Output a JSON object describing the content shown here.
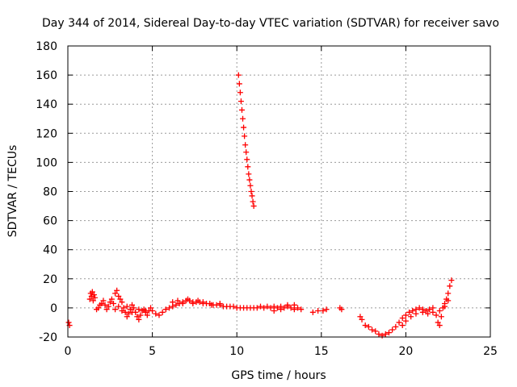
{
  "chart_data": {
    "type": "scatter",
    "title": "Day 344 of 2014, Sidereal Day-to-day VTEC variation (SDTVAR) for receiver savo",
    "xlabel": "GPS time / hours",
    "ylabel": "SDTVAR / TECUs",
    "xlim": [
      0,
      25
    ],
    "ylim": [
      -20,
      180
    ],
    "xticks": [
      "0",
      "5",
      "10",
      "15",
      "20",
      "25"
    ],
    "yticks": [
      "-20",
      "0",
      "20",
      "40",
      "60",
      "80",
      "100",
      "120",
      "140",
      "160",
      "180"
    ],
    "grid": true,
    "marker": "+",
    "marker_color": "#ff0000",
    "series": [
      {
        "name": "SDTVAR",
        "points": [
          [
            0.05,
            -10
          ],
          [
            0.1,
            -12
          ],
          [
            1.3,
            6
          ],
          [
            1.35,
            10
          ],
          [
            1.4,
            8
          ],
          [
            1.45,
            11
          ],
          [
            1.5,
            5
          ],
          [
            1.55,
            9
          ],
          [
            1.6,
            7
          ],
          [
            1.7,
            -1
          ],
          [
            1.8,
            0
          ],
          [
            1.9,
            2
          ],
          [
            2.0,
            3
          ],
          [
            2.1,
            5
          ],
          [
            2.2,
            2
          ],
          [
            2.3,
            -1
          ],
          [
            2.4,
            1
          ],
          [
            2.5,
            4
          ],
          [
            2.6,
            6
          ],
          [
            2.7,
            3
          ],
          [
            2.8,
            10
          ],
          [
            2.9,
            12
          ],
          [
            3.0,
            8
          ],
          [
            3.1,
            6
          ],
          [
            3.2,
            4
          ],
          [
            3.3,
            0
          ],
          [
            3.4,
            -3
          ],
          [
            3.5,
            -6
          ],
          [
            3.6,
            -4
          ],
          [
            3.7,
            -1
          ],
          [
            3.8,
            2
          ],
          [
            3.9,
            0
          ],
          [
            4.0,
            -3
          ],
          [
            4.1,
            -6
          ],
          [
            4.2,
            -8
          ],
          [
            4.3,
            -5
          ],
          [
            4.4,
            -2
          ],
          [
            4.5,
            -1
          ],
          [
            4.6,
            -3
          ],
          [
            4.7,
            -5
          ],
          [
            4.8,
            -2
          ],
          [
            4.9,
            0
          ],
          [
            2.8,
            -1
          ],
          [
            3.0,
            1
          ],
          [
            3.2,
            -2
          ],
          [
            3.5,
            1
          ],
          [
            3.8,
            -3
          ],
          [
            4.2,
            -1
          ],
          [
            4.6,
            -2
          ],
          [
            5.0,
            -2
          ],
          [
            5.2,
            -4
          ],
          [
            5.4,
            -5
          ],
          [
            5.6,
            -3
          ],
          [
            5.8,
            -1
          ],
          [
            6.0,
            0
          ],
          [
            6.2,
            1
          ],
          [
            6.4,
            2
          ],
          [
            6.6,
            3
          ],
          [
            6.8,
            4
          ],
          [
            7.0,
            5
          ],
          [
            7.2,
            5
          ],
          [
            7.4,
            4
          ],
          [
            7.6,
            4
          ],
          [
            7.8,
            4
          ],
          [
            8.0,
            3
          ],
          [
            8.2,
            3
          ],
          [
            8.4,
            3
          ],
          [
            8.6,
            2
          ],
          [
            8.8,
            2
          ],
          [
            9.0,
            2
          ],
          [
            9.2,
            1
          ],
          [
            9.4,
            1
          ],
          [
            9.6,
            1
          ],
          [
            9.8,
            1
          ],
          [
            10.0,
            0
          ],
          [
            10.2,
            0
          ],
          [
            10.4,
            0
          ],
          [
            10.6,
            0
          ],
          [
            10.8,
            0
          ],
          [
            11.0,
            0
          ],
          [
            11.2,
            0
          ],
          [
            11.4,
            1
          ],
          [
            11.6,
            0
          ],
          [
            11.8,
            1
          ],
          [
            12.0,
            0
          ],
          [
            12.2,
            1
          ],
          [
            12.4,
            0
          ],
          [
            12.6,
            1
          ],
          [
            12.8,
            0
          ],
          [
            13.0,
            1
          ],
          [
            13.2,
            0
          ],
          [
            13.4,
            -1
          ],
          [
            13.6,
            0
          ],
          [
            13.8,
            -1
          ],
          [
            6.2,
            4
          ],
          [
            6.5,
            5
          ],
          [
            6.8,
            3
          ],
          [
            7.1,
            6
          ],
          [
            7.4,
            3
          ],
          [
            7.7,
            5
          ],
          [
            8.0,
            4
          ],
          [
            8.5,
            2
          ],
          [
            9.0,
            3
          ],
          [
            12.2,
            -2
          ],
          [
            12.6,
            -1
          ],
          [
            13.0,
            2
          ],
          [
            13.4,
            2
          ],
          [
            10.1,
            160
          ],
          [
            10.15,
            154
          ],
          [
            10.2,
            148
          ],
          [
            10.25,
            142
          ],
          [
            10.3,
            136
          ],
          [
            10.35,
            130
          ],
          [
            10.4,
            124
          ],
          [
            10.45,
            118
          ],
          [
            10.5,
            112
          ],
          [
            10.55,
            107
          ],
          [
            10.6,
            102
          ],
          [
            10.65,
            97
          ],
          [
            10.7,
            92
          ],
          [
            10.75,
            88
          ],
          [
            10.8,
            84
          ],
          [
            10.85,
            80
          ],
          [
            10.9,
            77
          ],
          [
            10.95,
            73
          ],
          [
            11.0,
            70
          ],
          [
            14.5,
            -3
          ],
          [
            14.8,
            -2
          ],
          [
            15.1,
            -2
          ],
          [
            15.3,
            -1
          ],
          [
            16.1,
            0
          ],
          [
            16.2,
            -1
          ],
          [
            17.3,
            -6
          ],
          [
            17.4,
            -8
          ],
          [
            17.6,
            -12
          ],
          [
            17.8,
            -13
          ],
          [
            18.0,
            -15
          ],
          [
            18.2,
            -16
          ],
          [
            18.4,
            -18
          ],
          [
            18.6,
            -19
          ],
          [
            18.8,
            -18
          ],
          [
            19.0,
            -17
          ],
          [
            19.2,
            -15
          ],
          [
            19.4,
            -13
          ],
          [
            19.6,
            -10
          ],
          [
            19.8,
            -7
          ],
          [
            20.0,
            -5
          ],
          [
            20.2,
            -3
          ],
          [
            20.4,
            -2
          ],
          [
            20.6,
            -1
          ],
          [
            20.8,
            0
          ],
          [
            21.0,
            -1
          ],
          [
            21.2,
            -2
          ],
          [
            21.4,
            -1
          ],
          [
            21.6,
            0
          ],
          [
            21.8,
            -5
          ],
          [
            21.9,
            -10
          ],
          [
            22.0,
            -12
          ],
          [
            22.1,
            -6
          ],
          [
            22.2,
            0
          ],
          [
            22.3,
            3
          ],
          [
            22.4,
            6
          ],
          [
            22.5,
            10
          ],
          [
            22.6,
            15
          ],
          [
            22.7,
            19
          ],
          [
            19.8,
            -12
          ],
          [
            20.0,
            -9
          ],
          [
            20.3,
            -6
          ],
          [
            20.6,
            -4
          ],
          [
            21.0,
            -3
          ],
          [
            21.3,
            -4
          ],
          [
            21.6,
            -3
          ],
          [
            22.0,
            -2
          ],
          [
            22.3,
            1
          ],
          [
            22.5,
            5
          ]
        ]
      }
    ]
  }
}
